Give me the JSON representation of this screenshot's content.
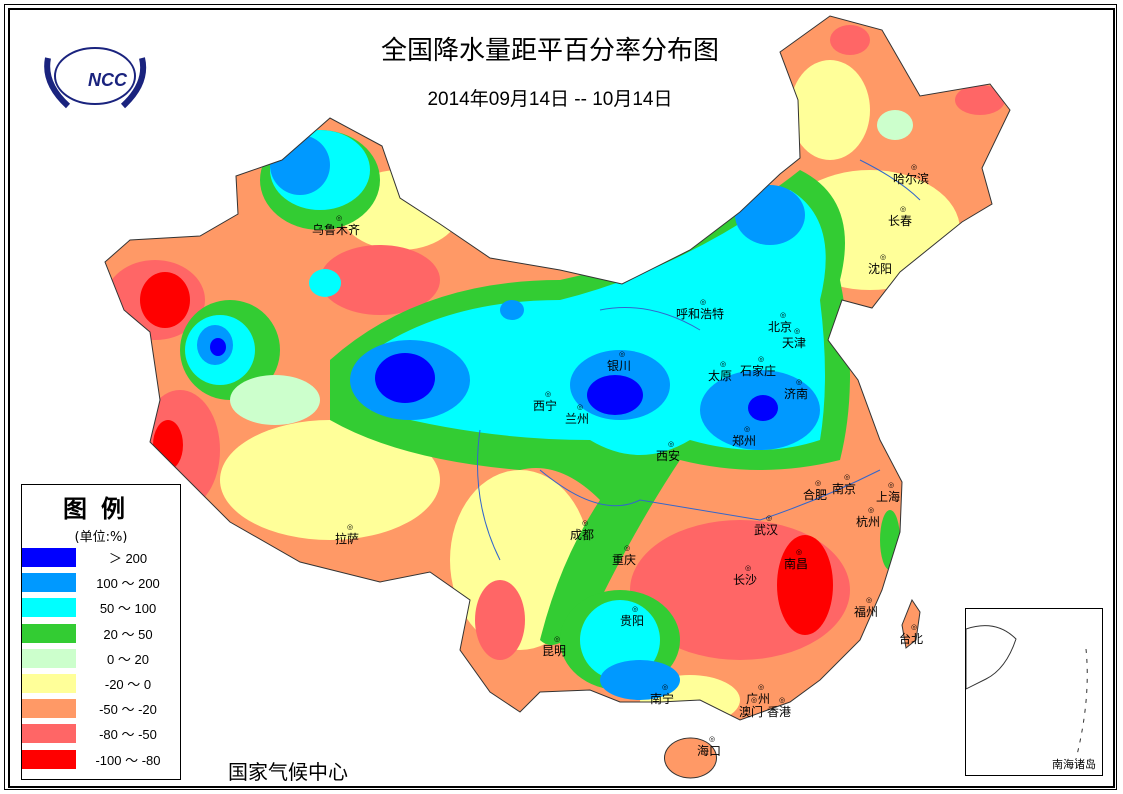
{
  "title": "全国降水量距平百分率分布图",
  "subtitle": "2014年09月14日 -- 10月14日",
  "logo_text": "中国 NCC",
  "organization": "国家气候中心",
  "legend": {
    "title": "图例",
    "unit": "(单位:%)",
    "items": [
      {
        "label": "＞ 200",
        "color": "#0000ff"
      },
      {
        "label": "100 ～ 200",
        "color": "#0099ff"
      },
      {
        "label": "50 ～ 100",
        "color": "#00ffff"
      },
      {
        "label": "20 ～ 50",
        "color": "#33cc33"
      },
      {
        "label": "0 ～ 20",
        "color": "#ccffcc"
      },
      {
        "label": "-20 ～ 0",
        "color": "#ffff99"
      },
      {
        "label": "-50 ～ -20",
        "color": "#ff9966"
      },
      {
        "label": "-80 ～ -50",
        "color": "#ff6666"
      },
      {
        "label": "-100 ～ -80",
        "color": "#ff0000"
      }
    ]
  },
  "cities": [
    "乌鲁木齐",
    "哈尔滨",
    "长春",
    "沈阳",
    "呼和浩特",
    "北京",
    "天津",
    "银川",
    "石家庄",
    "太原",
    "济南",
    "西宁",
    "兰州",
    "郑州",
    "西安",
    "合肥",
    "南京",
    "上海",
    "成都",
    "武汉",
    "杭州",
    "拉萨",
    "重庆",
    "南昌",
    "长沙",
    "贵阳",
    "福州",
    "台北",
    "昆明",
    "南宁",
    "广州",
    "澳门",
    "香港",
    "海口"
  ],
  "inset_label": "南海诸岛"
}
